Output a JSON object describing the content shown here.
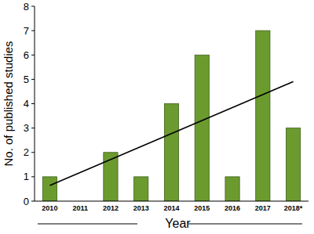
{
  "chart_data": {
    "type": "bar",
    "x_label": "Year",
    "y_label": "No. of published studies",
    "categories": [
      "2010",
      "2011",
      "2012",
      "2013",
      "2014",
      "2015",
      "2016",
      "2017",
      "2018*"
    ],
    "values": [
      1,
      0,
      2,
      1,
      4,
      6,
      1,
      7,
      3
    ],
    "color": "#6b9b2e",
    "ylim": [
      0,
      8
    ],
    "yticks": [
      0,
      1,
      2,
      3,
      4,
      5,
      6,
      7,
      8
    ],
    "trendline": [
      0.64,
      4.91
    ],
    "grid": false
  }
}
